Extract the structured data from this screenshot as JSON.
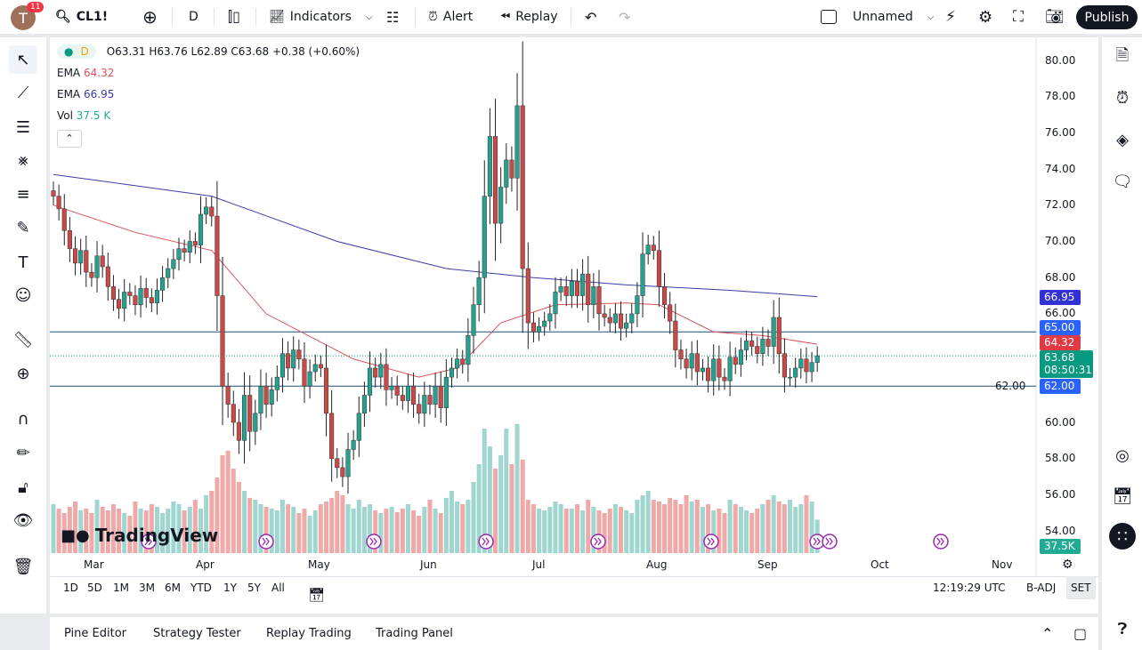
{
  "topbar": {
    "avatar_letter": "T",
    "notifications": "11",
    "symbol": "CL1!",
    "interval": "D",
    "indicators": "Indicators",
    "alert": "Alert",
    "replay": "Replay",
    "layout_name": "Unnamed",
    "publish": "Publish"
  },
  "legend": {
    "interval": "D",
    "ohlc": "O63.31 H63.76 L62.89 C63.68 +0.38 (+0.60%)",
    "ema1_label": "EMA",
    "ema1_value": "64.32",
    "ema2_label": "EMA",
    "ema2_value": "66.95",
    "vol_label": "Vol",
    "vol_value": "37.5 K"
  },
  "price_labels": {
    "ema2": "66.95",
    "line_65": "65.00",
    "ema1": "64.32",
    "last": "63.68",
    "countdown": "08:50:31",
    "line_62": "62.00",
    "volume": "37.5K"
  },
  "colors": {
    "up": "#26a18f",
    "down": "#c94848",
    "ema1": "#d9535a",
    "ema2": "#3c3ca8",
    "hline": "#1f4e79",
    "accent": "#2962ff"
  },
  "chart_data": {
    "type": "candlestick",
    "yticks": [
      "80.00",
      "78.00",
      "76.00",
      "74.00",
      "72.00",
      "70.00",
      "68.00",
      "66.00",
      "62.00",
      "60.00",
      "58.00",
      "56.00",
      "54.00"
    ],
    "ylim": [
      54,
      80
    ],
    "months": [
      "Mar",
      "Apr",
      "May",
      "Jun",
      "Jul",
      "Aug",
      "Sep",
      "Oct",
      "Nov"
    ],
    "hlines": [
      65,
      62
    ],
    "closes": [
      72.5,
      71.8,
      70.6,
      69.6,
      68.8,
      69.5,
      68.3,
      68.0,
      69.2,
      68.6,
      67.5,
      66.8,
      66.3,
      67.2,
      67.0,
      66.5,
      67.4,
      66.9,
      66.6,
      67.3,
      68.0,
      68.5,
      69.0,
      69.6,
      69.4,
      70.0,
      69.8,
      71.5,
      71.9,
      71.4,
      67.0,
      62.0,
      61.0,
      60.0,
      59.0,
      61.5,
      59.5,
      60.5,
      62.0,
      61.0,
      61.8,
      62.5,
      63.8,
      63.0,
      64.0,
      63.5,
      62.0,
      62.8,
      63.2,
      63.0,
      60.5,
      58.0,
      57.5,
      57.0,
      58.5,
      59.0,
      60.5,
      61.5,
      63.0,
      62.5,
      63.2,
      61.8,
      62.0,
      61.5,
      61.2,
      62.0,
      61.0,
      60.5,
      61.5,
      61.0,
      62.0,
      60.8,
      62.5,
      63.0,
      63.5,
      63.2,
      64.8,
      66.5,
      68.0,
      72.5,
      75.8,
      71.0,
      73.0,
      74.5,
      73.5,
      77.5,
      68.5,
      65.5,
      65.0,
      65.3,
      65.6,
      66.0,
      67.2,
      67.5,
      67.0,
      67.8,
      67.0,
      68.2,
      66.5,
      67.5,
      66.0,
      65.8,
      65.5,
      66.0,
      65.2,
      65.5,
      66.0,
      67.0,
      69.3,
      69.8,
      69.5,
      67.5,
      66.5,
      65.6,
      64.0,
      63.5,
      63.0,
      63.8,
      62.8,
      63.0,
      62.3,
      63.5,
      62.5,
      62.3,
      63.6,
      63.2,
      64.0,
      64.5,
      64.2,
      63.8,
      64.6,
      64.2,
      65.8,
      63.8,
      62.5,
      62.5,
      63.0,
      63.5,
      62.8,
      63.31,
      63.68
    ],
    "volumes_k": [
      55,
      50,
      45,
      52,
      58,
      48,
      50,
      45,
      60,
      52,
      48,
      55,
      50,
      45,
      42,
      58,
      50,
      48,
      55,
      52,
      45,
      50,
      58,
      55,
      48,
      52,
      60,
      50,
      65,
      70,
      85,
      110,
      115,
      95,
      80,
      70,
      62,
      60,
      55,
      52,
      50,
      48,
      60,
      55,
      52,
      45,
      50,
      42,
      48,
      55,
      58,
      62,
      70,
      65,
      55,
      50,
      60,
      52,
      55,
      48,
      45,
      50,
      52,
      46,
      50,
      55,
      48,
      42,
      52,
      60,
      50,
      45,
      62,
      70,
      58,
      55,
      60,
      80,
      100,
      140,
      120,
      95,
      110,
      140,
      100,
      145,
      105,
      60,
      55,
      50,
      48,
      52,
      58,
      55,
      50,
      50,
      55,
      48,
      60,
      52,
      48,
      45,
      50,
      55,
      52,
      48,
      45,
      60,
      65,
      70,
      60,
      58,
      55,
      62,
      60,
      55,
      65,
      58,
      60,
      52,
      55,
      48,
      50,
      45,
      60,
      55,
      52,
      48,
      45,
      50,
      55,
      60,
      65,
      58,
      55,
      60,
      52,
      55,
      65,
      58,
      37.5
    ],
    "ema1": [
      [
        0,
        72
      ],
      [
        15,
        70.5
      ],
      [
        29,
        69.5
      ],
      [
        39,
        66
      ],
      [
        55,
        63.5
      ],
      [
        67,
        62.5
      ],
      [
        74,
        63
      ],
      [
        82,
        65.5
      ],
      [
        92,
        66.5
      ],
      [
        105,
        66.6
      ],
      [
        111,
        66.5
      ],
      [
        121,
        65
      ],
      [
        130,
        64.8
      ],
      [
        140,
        64.32
      ]
    ],
    "ema2": [
      [
        0,
        73.7
      ],
      [
        29,
        72.5
      ],
      [
        52,
        70
      ],
      [
        72,
        68.5
      ],
      [
        88,
        68
      ],
      [
        105,
        67.6
      ],
      [
        124,
        67.3
      ],
      [
        140,
        66.95
      ]
    ]
  },
  "time_axis": {
    "clock": "12:19:29 UTC",
    "badj": "B-ADJ",
    "set": "SET"
  },
  "ranges": [
    "1D",
    "5D",
    "1M",
    "3M",
    "6M",
    "YTD",
    "1Y",
    "5Y",
    "All"
  ],
  "bottom_panel": [
    "Pine Editor",
    "Strategy Tester",
    "Replay Trading",
    "Trading Panel"
  ],
  "watermark": "TradingView"
}
